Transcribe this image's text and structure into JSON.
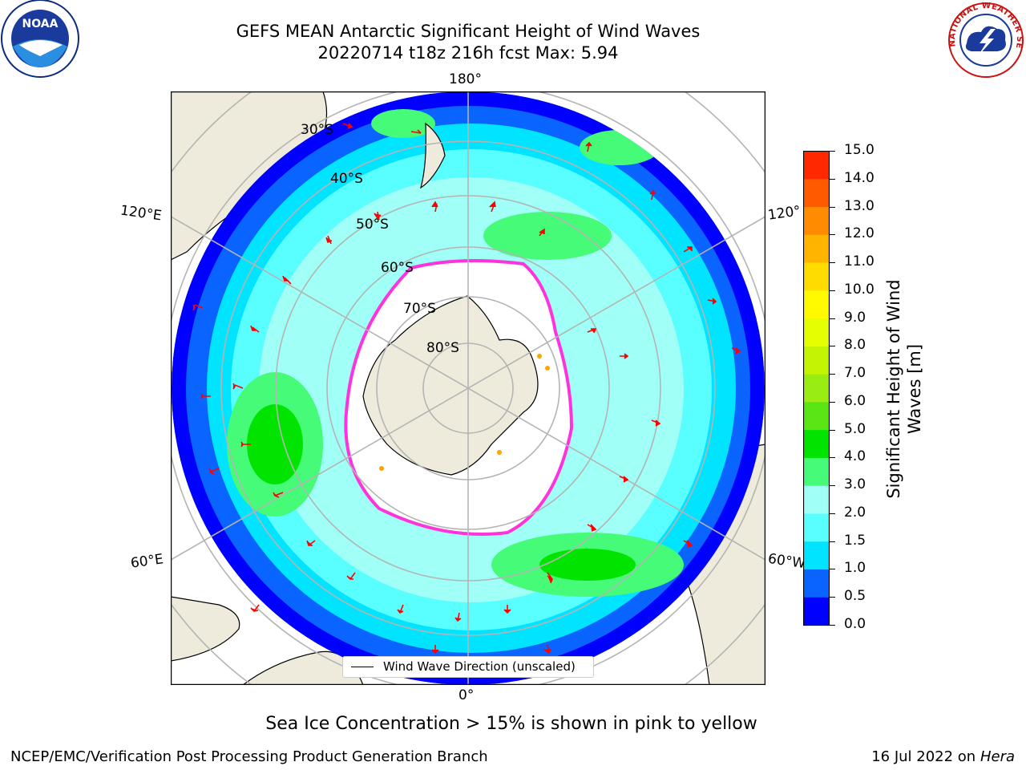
{
  "title": {
    "line1": "GEFS MEAN Antarctic Significant Height of Wind Waves",
    "line2": "20220714 t18z 216h fcst   Max: 5.94"
  },
  "logos": {
    "noaa": {
      "text": "NOAA"
    },
    "nws": {
      "text": "NATIONAL WEATHER SERVICE"
    }
  },
  "map": {
    "projection": "south polar stereographic",
    "longitude_labels": {
      "top": "180°",
      "bottom": "0°",
      "left_upper": "120°E",
      "left_lower": "60°E",
      "right_upper": "120°",
      "right_lower": "60°W"
    },
    "latitude_labels": [
      "30°S",
      "40°S",
      "50°S",
      "60°S",
      "70°S",
      "80°S"
    ],
    "legend": {
      "text": "Wind Wave Direction (unscaled)"
    },
    "colors": {
      "land": "#efebdc",
      "ice": "#ffffff",
      "grid": "#b4b4b4",
      "arrow": "#ff0000",
      "ice_edge": "#ff33dd"
    }
  },
  "colorbar": {
    "title": "Significant Height of Wind Waves [m]",
    "ticks": [
      "0.0",
      "0.5",
      "1.0",
      "1.5",
      "2.0",
      "3.0",
      "4.0",
      "5.0",
      "6.0",
      "7.0",
      "8.0",
      "9.0",
      "10.0",
      "11.0",
      "12.0",
      "13.0",
      "14.0",
      "15.0"
    ],
    "colors": [
      "#0000ff",
      "#0a64ff",
      "#00e4ff",
      "#59ffff",
      "#a0fff6",
      "#46fb78",
      "#00e400",
      "#5ae614",
      "#9aed12",
      "#c3f502",
      "#e6ff00",
      "#fffa00",
      "#ffdc00",
      "#ffb400",
      "#ff8c00",
      "#ff5a00",
      "#ff2800",
      "#ff0000"
    ]
  },
  "caption": "Sea Ice Concentration > 15% is shown in pink to yellow",
  "footer": {
    "left": "NCEP/EMC/Verification Post Processing Product Generation Branch",
    "date": "16 Jul 2022 on",
    "machine": "Hera"
  }
}
